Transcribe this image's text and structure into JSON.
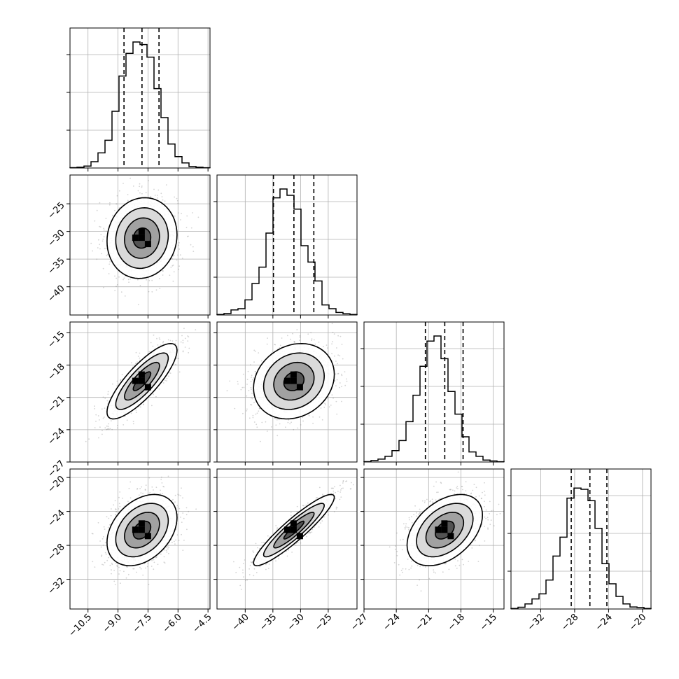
{
  "chart_data": {
    "type": "corner",
    "parameters": 4,
    "grid": true,
    "scatter_color": "#808080",
    "contour_color": "#000000",
    "quantile_line_style": "dashed",
    "params": [
      {
        "range": [
          -11.4,
          -4.4
        ],
        "ticks": [
          -10.5,
          -9.0,
          -7.5,
          -6.0,
          -4.5
        ],
        "tick_labels": [
          "−10.5",
          "−9.0",
          "−7.5",
          "−6.0",
          "−4.5"
        ],
        "quantiles": [
          -8.7,
          -7.8,
          -6.95
        ],
        "hist_bins": [
          0.003,
          0.006,
          0.015,
          0.05,
          0.12,
          0.22,
          0.45,
          0.73,
          0.91,
          1.0,
          0.98,
          0.88,
          0.63,
          0.4,
          0.19,
          0.09,
          0.04,
          0.012,
          0.006,
          0.002
        ]
      },
      {
        "range": [
          -45.1,
          -19.8
        ],
        "ticks": [
          -40,
          -35,
          -30,
          -25
        ],
        "tick_labels": [
          "−40",
          "−35",
          "−30",
          "−25"
        ],
        "quantiles": [
          -34.9,
          -31.2,
          -27.6
        ],
        "hist_bins": [
          0.004,
          0.012,
          0.04,
          0.05,
          0.12,
          0.25,
          0.38,
          0.65,
          0.93,
          1.0,
          0.95,
          0.84,
          0.55,
          0.42,
          0.27,
          0.08,
          0.05,
          0.02,
          0.01,
          0.004
        ]
      },
      {
        "range": [
          -27.0,
          -14.0
        ],
        "ticks": [
          -27,
          -24,
          -21,
          -18,
          -15
        ],
        "tick_labels": [
          "−27",
          "−24",
          "−21",
          "−18",
          "−15"
        ],
        "quantiles": [
          -21.3,
          -19.5,
          -17.8
        ],
        "hist_bins": [
          0.003,
          0.012,
          0.023,
          0.045,
          0.09,
          0.17,
          0.32,
          0.53,
          0.76,
          0.96,
          1.0,
          0.82,
          0.56,
          0.38,
          0.2,
          0.08,
          0.045,
          0.015,
          0.008,
          0.002
        ]
      },
      {
        "range": [
          -35.5,
          -19.0
        ],
        "ticks": [
          -32,
          -28,
          -24,
          -20
        ],
        "tick_labels": [
          "−32",
          "−28",
          "−24",
          "−20"
        ],
        "quantiles": [
          -28.4,
          -26.2,
          -24.2
        ],
        "hist_bins": [
          0.004,
          0.014,
          0.04,
          0.08,
          0.12,
          0.23,
          0.42,
          0.57,
          0.88,
          0.96,
          0.95,
          0.86,
          0.64,
          0.36,
          0.2,
          0.1,
          0.04,
          0.016,
          0.012,
          0.004
        ]
      }
    ],
    "correlations": [
      [
        1.0,
        0.08,
        0.82,
        0.35
      ],
      [
        0.08,
        1.0,
        0.18,
        0.92
      ],
      [
        0.82,
        0.18,
        1.0,
        0.42
      ],
      [
        0.35,
        0.92,
        0.42,
        1.0
      ]
    ]
  }
}
